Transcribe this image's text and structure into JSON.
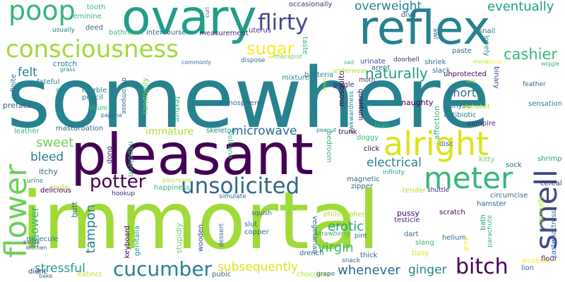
{
  "palette": {
    "purple": "#440154",
    "indigo": "#482878",
    "blue": "#3e4989",
    "steel": "#31688e",
    "teal": "#26828e",
    "green": "#1f9e89",
    "mint": "#35b779",
    "lime": "#6ece58",
    "yellowgreen": "#b5de2b",
    "yellow": "#fde725"
  },
  "words": [
    {
      "text": "somewhere",
      "color": "#26828e"
    },
    {
      "text": "immortal",
      "color": "#a0da39"
    },
    {
      "text": "reflex",
      "color": "#26828e"
    },
    {
      "text": "ovary",
      "color": "#1f9e89"
    },
    {
      "text": "pleasant",
      "color": "#440154"
    },
    {
      "text": "consciousness",
      "color": "#a0da39"
    },
    {
      "text": "poop",
      "color": "#35b779"
    },
    {
      "text": "flirty",
      "color": "#3e4989"
    },
    {
      "text": "alright",
      "color": "#dde318"
    },
    {
      "text": "meter",
      "color": "#35b779"
    },
    {
      "text": "unsolicited",
      "color": "#31688e"
    },
    {
      "text": "smell",
      "color": "#3e4989"
    },
    {
      "text": "flower",
      "color": "#6ece58"
    },
    {
      "text": "bitch",
      "color": "#440154"
    },
    {
      "text": "cucumber",
      "color": "#26828e"
    },
    {
      "text": "potter",
      "color": "#440154"
    },
    {
      "text": "sugar",
      "color": "#fde725"
    },
    {
      "text": "naturally",
      "color": "#1f9e89"
    },
    {
      "text": "cashier",
      "color": "#35b779"
    },
    {
      "text": "eventually",
      "color": "#1f9e89"
    },
    {
      "text": "overweight",
      "color": "#26828e"
    },
    {
      "text": "felt",
      "color": "#26828e"
    },
    {
      "text": "sweet",
      "color": "#6ece58"
    },
    {
      "text": "bleed",
      "color": "#26828e"
    },
    {
      "text": "microwave",
      "color": "#31688e"
    },
    {
      "text": "electrical",
      "color": "#26828e"
    },
    {
      "text": "virgin",
      "color": "#35b779"
    },
    {
      "text": "erotic",
      "color": "#1f9e89"
    },
    {
      "text": "subsequently",
      "color": "#dde318"
    },
    {
      "text": "stressful",
      "color": "#1f9e89"
    },
    {
      "text": "whenever",
      "color": "#31688e"
    },
    {
      "text": "ginger",
      "color": "#26828e"
    },
    {
      "text": "tampon",
      "color": "#26828e"
    },
    {
      "text": "shower",
      "color": "#35b779"
    },
    {
      "text": "snort",
      "color": "#31688e"
    },
    {
      "text": "immature",
      "color": "#b5de2b"
    },
    {
      "text": "tooth",
      "color": "#35b779"
    },
    {
      "text": "feminine",
      "color": "#35b779"
    },
    {
      "text": "usually",
      "color": "#26828e"
    },
    {
      "text": "deed",
      "color": "#31688e"
    },
    {
      "text": "bathroom",
      "color": "#35b779"
    },
    {
      "text": "intercourse",
      "color": "#31688e"
    },
    {
      "text": "measurement",
      "color": "#482878"
    },
    {
      "text": "uterus",
      "color": "#482878"
    },
    {
      "text": "occasionally",
      "color": "#482878"
    },
    {
      "text": "bacteria",
      "color": "#26828e"
    },
    {
      "text": "mixture",
      "color": "#26828e"
    },
    {
      "text": "therapist",
      "color": "#6ece58"
    },
    {
      "text": "taste",
      "color": "#35b779"
    },
    {
      "text": "diva",
      "color": "#31688e"
    },
    {
      "text": "moth",
      "color": "#482878"
    },
    {
      "text": "giggle",
      "color": "#482878"
    },
    {
      "text": "urinate",
      "color": "#3e4989"
    },
    {
      "text": "arent",
      "color": "#31688e"
    },
    {
      "text": "doorbell",
      "color": "#482878"
    },
    {
      "text": "shriek",
      "color": "#31688e"
    },
    {
      "text": "paste",
      "color": "#31688e"
    },
    {
      "text": "snail",
      "color": "#31688e"
    },
    {
      "text": "lovely",
      "color": "#26828e"
    },
    {
      "text": "unprotected",
      "color": "#440154"
    },
    {
      "text": "slack",
      "color": "#31688e"
    },
    {
      "text": "binary",
      "color": "#3e4989"
    },
    {
      "text": "wiggle",
      "color": "#35b779"
    },
    {
      "text": "feather",
      "color": "#31688e"
    },
    {
      "text": "crotch",
      "color": "#26828e"
    },
    {
      "text": "grass",
      "color": "#26828e"
    },
    {
      "text": "commonly",
      "color": "#31688e"
    },
    {
      "text": "dispose",
      "color": "#31688e"
    },
    {
      "text": "infinite",
      "color": "#31688e"
    },
    {
      "text": "fateful",
      "color": "#26828e"
    },
    {
      "text": "preface",
      "color": "#31688e"
    },
    {
      "text": "marble",
      "color": "#26828e"
    },
    {
      "text": "pencil",
      "color": "#26828e"
    },
    {
      "text": "album",
      "color": "#35b779"
    },
    {
      "text": "catcall",
      "color": "#26828e"
    },
    {
      "text": "randomly",
      "color": "#6ece58"
    },
    {
      "text": "decompose",
      "color": "#31688e"
    },
    {
      "text": "texture",
      "color": "#35b779"
    },
    {
      "text": "atmosphere",
      "color": "#31688e"
    },
    {
      "text": "mosquito",
      "color": "#440154"
    },
    {
      "text": "quantum",
      "color": "#440154"
    },
    {
      "text": "awkwardness",
      "color": "#26828e"
    },
    {
      "text": "naughty",
      "color": "#440154"
    },
    {
      "text": "physic",
      "color": "#26828e"
    },
    {
      "text": "antibiotic",
      "color": "#26828e"
    },
    {
      "text": "vampire",
      "color": "#482878"
    },
    {
      "text": "sensation",
      "color": "#26828e"
    },
    {
      "text": "affection",
      "color": "#35b779"
    },
    {
      "text": "masturbation",
      "color": "#31688e"
    },
    {
      "text": "leather",
      "color": "#35b779"
    },
    {
      "text": "skeleton",
      "color": "#26828e"
    },
    {
      "text": "pajama",
      "color": "#31688e"
    },
    {
      "text": "peanut",
      "color": "#26828e"
    },
    {
      "text": "trunk",
      "color": "#440154"
    },
    {
      "text": "blah",
      "color": "#35b779"
    },
    {
      "text": "doggy",
      "color": "#35b779"
    },
    {
      "text": "disc",
      "color": "#31688e"
    },
    {
      "text": "shrimp",
      "color": "#1f9e89"
    },
    {
      "text": "itchy",
      "color": "#31688e"
    },
    {
      "text": "dude",
      "color": "#b5de2b"
    },
    {
      "text": "urine",
      "color": "#26828e"
    },
    {
      "text": "delicious",
      "color": "#440154"
    },
    {
      "text": "napoleon",
      "color": "#35b779"
    },
    {
      "text": "dong",
      "color": "#482878"
    },
    {
      "text": "volcano",
      "color": "#35b779"
    },
    {
      "text": "bedroom",
      "color": "#35b779"
    },
    {
      "text": "click",
      "color": "#440154"
    },
    {
      "text": "infinity",
      "color": "#1f9e89"
    },
    {
      "text": "kitty",
      "color": "#6ece58"
    },
    {
      "text": "sock",
      "color": "#31688e"
    },
    {
      "text": "cereal",
      "color": "#482878"
    },
    {
      "text": "magnetic",
      "color": "#31688e"
    },
    {
      "text": "zipper",
      "color": "#31688e"
    },
    {
      "text": "tender",
      "color": "#b5de2b"
    },
    {
      "text": "shuttle",
      "color": "#482878"
    },
    {
      "text": "circumcise",
      "color": "#31688e"
    },
    {
      "text": "happiness",
      "color": "#35b779"
    },
    {
      "text": "hookup",
      "color": "#482878"
    },
    {
      "text": "simulate",
      "color": "#31688e"
    },
    {
      "text": "hamster",
      "color": "#31688e"
    },
    {
      "text": "sauce",
      "color": "#3e4989"
    },
    {
      "text": "molecule",
      "color": "#26828e"
    },
    {
      "text": "kitchen",
      "color": "#31688e"
    },
    {
      "text": "butt",
      "color": "#31688e"
    },
    {
      "text": "keyboard",
      "color": "#440154"
    },
    {
      "text": "genitalia",
      "color": "#1f9e89"
    },
    {
      "text": "stupidly",
      "color": "#6ece58"
    },
    {
      "text": "wooden",
      "color": "#3e4989"
    },
    {
      "text": "dessert",
      "color": "#31688e"
    },
    {
      "text": "vegetarian",
      "color": "#31688e"
    },
    {
      "text": "philosopher",
      "color": "#b5de2b"
    },
    {
      "text": "testicle",
      "color": "#482878"
    },
    {
      "text": "pussy",
      "color": "#440154"
    },
    {
      "text": "scratch",
      "color": "#440154"
    },
    {
      "text": "bath",
      "color": "#1f9e89"
    },
    {
      "text": "parachute",
      "color": "#35b779"
    },
    {
      "text": "normally",
      "color": "#b5de2b"
    },
    {
      "text": "mattress",
      "color": "#31688e"
    },
    {
      "text": "taste",
      "color": "#31688e"
    },
    {
      "text": "slut",
      "color": "#31688e"
    },
    {
      "text": "copper",
      "color": "#31688e"
    },
    {
      "text": "squish",
      "color": "#31688e"
    },
    {
      "text": "pint",
      "color": "#31688e"
    },
    {
      "text": "strawberry",
      "color": "#35b779"
    },
    {
      "text": "dart",
      "color": "#31688e"
    },
    {
      "text": "slang",
      "color": "#35b779"
    },
    {
      "text": "helium",
      "color": "#31688e"
    },
    {
      "text": "tipsy",
      "color": "#dde318"
    },
    {
      "text": "grey",
      "color": "#fde725"
    },
    {
      "text": "alcoholic",
      "color": "#fde725"
    },
    {
      "text": "flour",
      "color": "#482878"
    },
    {
      "text": "lion",
      "color": "#31688e"
    },
    {
      "text": "didnt",
      "color": "#482878"
    },
    {
      "text": "bake",
      "color": "#31688e"
    },
    {
      "text": "extinct",
      "color": "#b5de2b"
    },
    {
      "text": "pubic",
      "color": "#31688e"
    },
    {
      "text": "chocolate",
      "color": "#b5de2b"
    },
    {
      "text": "drench",
      "color": "#31688e"
    },
    {
      "text": "grape",
      "color": "#31688e"
    },
    {
      "text": "thick",
      "color": "#31688e"
    },
    {
      "text": "snack",
      "color": "#31688e"
    },
    {
      "text": "curl",
      "color": "#31688e"
    },
    {
      "text": "underwear",
      "color": "#b5de2b"
    },
    {
      "text": "sad",
      "color": "#35b779"
    },
    {
      "text": "monk",
      "color": "#b5de2b"
    },
    {
      "text": "penis",
      "color": "#fde725"
    },
    {
      "text": "tidy",
      "color": "#b5de2b"
    },
    {
      "text": "alphabet",
      "color": "#b5de2b"
    },
    {
      "text": "awl",
      "color": "#31688e"
    },
    {
      "text": "smell",
      "color": "#b5de2b"
    },
    {
      "text": "passrsmie",
      "color": "#b5de2b"
    },
    {
      "text": "end",
      "color": "#b5de2b"
    }
  ]
}
